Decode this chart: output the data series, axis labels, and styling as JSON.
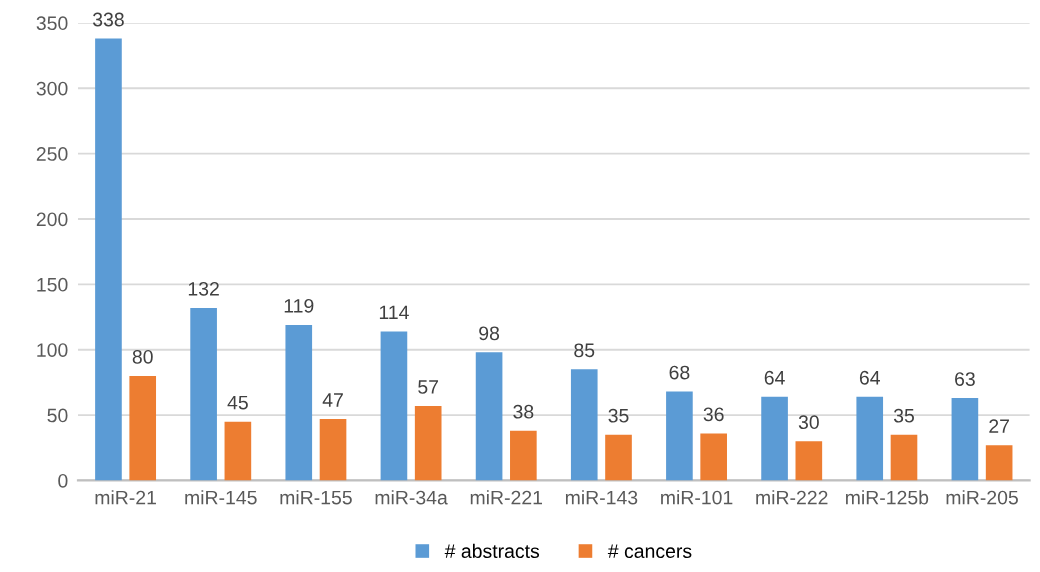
{
  "chart_data": {
    "type": "bar",
    "categories": [
      "miR-21",
      "miR-145",
      "miR-155",
      "miR-34a",
      "miR-221",
      "miR-143",
      "miR-101",
      "miR-222",
      "miR-125b",
      "miR-205"
    ],
    "series": [
      {
        "name": "# abstracts",
        "color": "#5b9bd5",
        "values": [
          338,
          132,
          119,
          114,
          98,
          85,
          68,
          64,
          64,
          63
        ]
      },
      {
        "name": "# cancers",
        "color": "#ed7d31",
        "values": [
          80,
          45,
          47,
          57,
          38,
          35,
          36,
          30,
          35,
          27
        ]
      }
    ],
    "ylim": [
      0,
      350
    ],
    "yticks": [
      0,
      50,
      100,
      150,
      200,
      250,
      300,
      350
    ],
    "grid": "y",
    "legend": "bottom",
    "data_labels": true
  }
}
